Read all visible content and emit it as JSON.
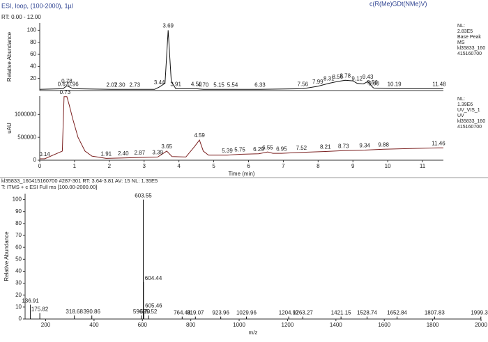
{
  "header": {
    "method": "ESI, loop, (100-2000), 1µl",
    "compound": "c(R(Me)GDt(NMe)V)",
    "range": "RT: 0.00 - 12.00"
  },
  "chart_data": [
    {
      "type": "line",
      "y_label": "Relative Abundance",
      "color": "#111111",
      "x": [
        0,
        0.67,
        0.78,
        0.96,
        2.07,
        2.3,
        2.73,
        3.3,
        3.44,
        3.6,
        3.69,
        3.78,
        3.91,
        4.5,
        4.7,
        5.15,
        5.54,
        6.33,
        7.56,
        7.99,
        8.31,
        8.56,
        8.78,
        9.0,
        9.12,
        9.3,
        9.43,
        9.56,
        9.6,
        10.19,
        11.48,
        11.6
      ],
      "values": [
        2,
        3,
        8,
        3,
        2,
        2,
        2,
        2,
        6,
        12,
        100,
        15,
        3,
        3,
        2,
        2,
        2,
        2,
        3,
        7,
        12,
        15,
        17,
        16,
        12,
        11,
        15,
        6,
        4,
        3,
        3,
        3
      ],
      "peaks": [
        {
          "x": 0.67,
          "label": "0.67"
        },
        {
          "x": 0.78,
          "label": "0.78"
        },
        {
          "x": 0.96,
          "label": "0.96"
        },
        {
          "x": 2.07,
          "label": "2.07"
        },
        {
          "x": 2.3,
          "label": "2.30"
        },
        {
          "x": 2.73,
          "label": "2.73"
        },
        {
          "x": 3.44,
          "label": "3.44"
        },
        {
          "x": 3.69,
          "label": "3.69"
        },
        {
          "x": 3.91,
          "label": "3.91"
        },
        {
          "x": 4.5,
          "label": "4.50"
        },
        {
          "x": 4.7,
          "label": "4.70"
        },
        {
          "x": 5.15,
          "label": "5.15"
        },
        {
          "x": 5.54,
          "label": "5.54"
        },
        {
          "x": 6.33,
          "label": "6.33"
        },
        {
          "x": 7.56,
          "label": "7.56"
        },
        {
          "x": 7.99,
          "label": "7.99"
        },
        {
          "x": 8.31,
          "label": "8.31"
        },
        {
          "x": 8.56,
          "label": "8.56"
        },
        {
          "x": 8.78,
          "label": "8.78"
        },
        {
          "x": 9.12,
          "label": "9.12"
        },
        {
          "x": 9.43,
          "label": "9.43"
        },
        {
          "x": 9.56,
          "label": "9.56"
        },
        {
          "x": 9.6,
          "label": "9.60"
        },
        {
          "x": 10.19,
          "label": "10.19"
        },
        {
          "x": 11.48,
          "label": "11.48"
        }
      ],
      "xlim": [
        0,
        11.6
      ],
      "ylim": [
        0,
        112
      ],
      "yticks": [
        20,
        40,
        60,
        80,
        100
      ],
      "side_labels": [
        "NL:",
        "2.83E5",
        "Base Peak",
        "MS",
        "kl35833_160",
        "415160700"
      ]
    },
    {
      "type": "line",
      "y_label": "uAU",
      "x_label": "Time (min)",
      "color": "#7a1f1f",
      "x": [
        0,
        0.14,
        0.65,
        0.7,
        0.78,
        0.85,
        0.95,
        1.1,
        1.3,
        1.5,
        1.91,
        2.4,
        2.87,
        3.39,
        3.65,
        3.8,
        4.2,
        4.45,
        4.59,
        4.7,
        4.85,
        5.39,
        5.75,
        6.29,
        6.55,
        6.7,
        6.95,
        7.52,
        8.21,
        8.73,
        9.34,
        9.88,
        11.46,
        11.6
      ],
      "values": [
        30000,
        30000,
        200000,
        1390000,
        1390000,
        1200000,
        900000,
        500000,
        200000,
        90000,
        40000,
        50000,
        60000,
        70000,
        200000,
        80000,
        70000,
        300000,
        440000,
        200000,
        110000,
        110000,
        130000,
        140000,
        180000,
        150000,
        150000,
        170000,
        190000,
        210000,
        220000,
        240000,
        270000,
        270000
      ],
      "peaks": [
        {
          "x": 0.14,
          "label": "0.14"
        },
        {
          "x": 0.73,
          "label": "0.73"
        },
        {
          "x": 1.91,
          "label": "1.91"
        },
        {
          "x": 2.4,
          "label": "2.40"
        },
        {
          "x": 2.87,
          "label": "2.87"
        },
        {
          "x": 3.39,
          "label": "3.39"
        },
        {
          "x": 3.65,
          "label": "3.65"
        },
        {
          "x": 4.59,
          "label": "4.59"
        },
        {
          "x": 5.39,
          "label": "5.39"
        },
        {
          "x": 5.75,
          "label": "5.75"
        },
        {
          "x": 6.29,
          "label": "6.29"
        },
        {
          "x": 6.55,
          "label": "6.55"
        },
        {
          "x": 6.95,
          "label": "6.95"
        },
        {
          "x": 7.52,
          "label": "7.52"
        },
        {
          "x": 8.21,
          "label": "8.21"
        },
        {
          "x": 8.73,
          "label": "8.73"
        },
        {
          "x": 9.34,
          "label": "9.34"
        },
        {
          "x": 9.88,
          "label": "9.88"
        },
        {
          "x": 11.46,
          "label": "11.46"
        }
      ],
      "xlim": [
        0,
        11.6
      ],
      "ylim": [
        0,
        1400000
      ],
      "yticks": [
        0,
        500000,
        1000000
      ],
      "xticks": [
        0,
        1,
        2,
        3,
        4,
        5,
        6,
        7,
        8,
        9,
        10,
        11
      ],
      "side_labels": [
        "NL:",
        "1.39E6",
        "UV_VIS_1",
        "UV",
        "kl35833_160",
        "415160700"
      ]
    },
    {
      "type": "stick",
      "header_lines": [
        "kl35833_160415160700 #287-301  RT: 3.64-3.81  AV: 15  NL: 1.35E5",
        "T: ITMS + c ESI Full ms [100.00-2000.00]"
      ],
      "y_label": "Relative Abundance",
      "x_label": "m/z",
      "color": "#111111",
      "x": [
        136.91,
        175.82,
        318.68,
        390.86,
        596.7,
        603.55,
        604.44,
        605.46,
        625.52,
        764.43,
        819.07,
        923.96,
        1029.96,
        1204.97,
        1263.27,
        1421.15,
        1528.74,
        1652.84,
        1807.83,
        1999.38
      ],
      "x_labels": [
        "136.91",
        "175.82",
        "318.68",
        "390.86",
        "596.70",
        "603.55",
        "604.44",
        "605.46",
        "625.52",
        "764.43",
        "819.07",
        "923.96",
        "1029.96",
        "1204.97",
        "1263.27",
        "1421.15",
        "1528.74",
        "1652.84",
        "1807.83",
        "1999.38"
      ],
      "values": [
        12,
        5,
        3,
        3,
        3,
        100,
        31,
        8,
        3,
        2,
        2,
        2,
        2,
        2,
        2,
        2,
        2,
        2,
        2,
        2
      ],
      "xlim": [
        115,
        2000
      ],
      "ylim": [
        0,
        105
      ],
      "xticks": [
        200,
        400,
        600,
        800,
        1000,
        1200,
        1400,
        1600,
        1800,
        2000
      ],
      "yticks": [
        0,
        10,
        20,
        30,
        40,
        50,
        60,
        70,
        80,
        90,
        100
      ]
    }
  ]
}
